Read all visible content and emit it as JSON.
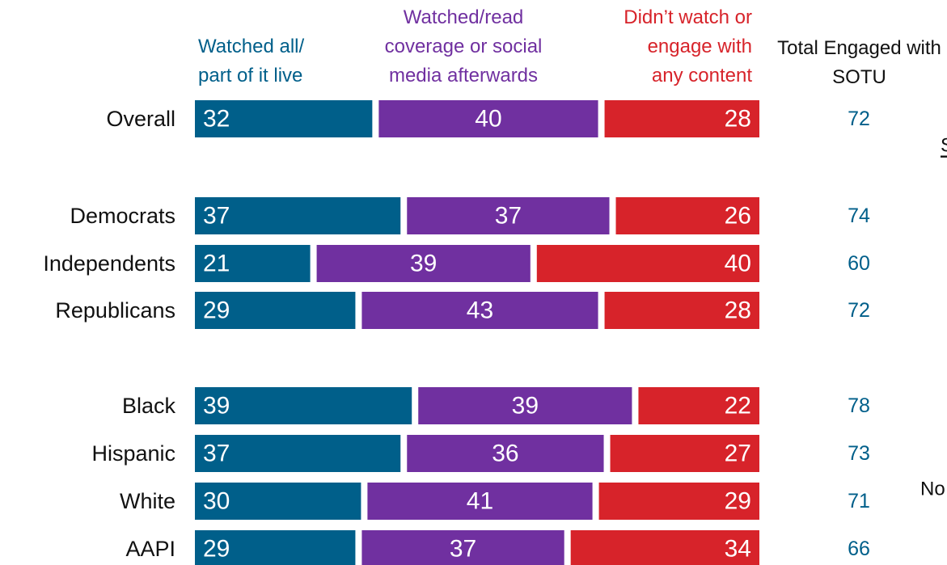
{
  "chart_data": {
    "type": "stacked-bar-horizontal",
    "categories": [
      "Overall",
      "Democrats",
      "Independents",
      "Republicans",
      "Black",
      "Hispanic",
      "White",
      "AAPI"
    ],
    "xlim": [
      0,
      100
    ],
    "series": [
      {
        "name": "Watched all/ part of it live",
        "color": "#005f8a",
        "values": [
          32,
          37,
          21,
          29,
          39,
          37,
          30,
          29
        ]
      },
      {
        "name": "Watched/read coverage or social media afterwards",
        "color": "#7030a0",
        "values": [
          40,
          37,
          39,
          43,
          39,
          36,
          41,
          37
        ]
      },
      {
        "name": "Didn’t watch or engage with any content",
        "color": "#d7232a",
        "values": [
          28,
          26,
          40,
          28,
          22,
          27,
          29,
          34
        ]
      }
    ],
    "total": {
      "name": "Total Engaged with SOTU",
      "color": "#005f8a",
      "values": [
        72,
        74,
        60,
        72,
        78,
        73,
        71,
        66
      ]
    },
    "annotations": [
      "S",
      "No"
    ]
  }
}
